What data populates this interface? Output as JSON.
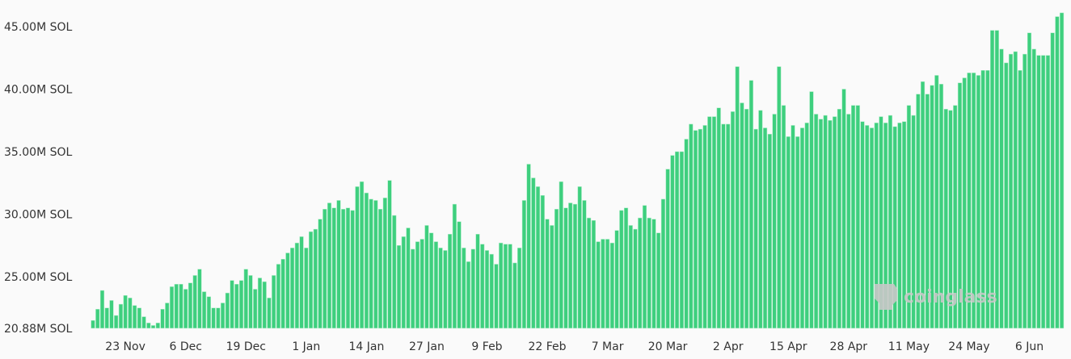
{
  "chart_data": {
    "type": "bar",
    "title": "",
    "xlabel": "",
    "ylabel": "",
    "unit": "M SOL",
    "bar_color": "#3ecf7e",
    "background": "#fafafa",
    "grid": false,
    "legend": "none",
    "ylim": [
      20.88,
      46.5
    ],
    "y_ticks": [
      {
        "value": 20.88,
        "label": "20.88M SOL"
      },
      {
        "value": 25,
        "label": "25.00M SOL"
      },
      {
        "value": 30,
        "label": "30.00M SOL"
      },
      {
        "value": 35,
        "label": "35.00M SOL"
      },
      {
        "value": 40,
        "label": "40.00M SOL"
      },
      {
        "value": 45,
        "label": "45.00M SOL"
      }
    ],
    "x_ticks": [
      "23 Nov",
      "6 Dec",
      "19 Dec",
      "1 Jan",
      "14 Jan",
      "27 Jan",
      "9 Feb",
      "22 Feb",
      "7 Mar",
      "20 Mar",
      "2 Apr",
      "15 Apr",
      "28 Apr",
      "11 May",
      "24 May",
      "6 Jun"
    ],
    "values": [
      21.5,
      22.4,
      23.9,
      22.5,
      23.1,
      21.9,
      22.8,
      23.5,
      23.3,
      22.7,
      22.5,
      21.8,
      21.3,
      21.1,
      21.3,
      22.4,
      22.9,
      24.2,
      24.4,
      24.4,
      24.0,
      24.5,
      25.1,
      25.6,
      23.8,
      23.4,
      22.5,
      22.5,
      22.9,
      23.7,
      24.7,
      24.4,
      24.7,
      25.6,
      25.1,
      24.0,
      24.9,
      24.6,
      23.3,
      25.1,
      26.0,
      26.4,
      26.9,
      27.3,
      27.7,
      28.2,
      27.3,
      28.6,
      28.8,
      29.6,
      30.4,
      30.9,
      30.5,
      31.1,
      30.4,
      30.5,
      30.3,
      32.2,
      32.6,
      31.7,
      31.2,
      31.1,
      30.4,
      31.3,
      32.7,
      29.9,
      27.5,
      28.2,
      28.9,
      27.2,
      27.8,
      28.0,
      29.1,
      28.5,
      27.8,
      27.3,
      27.1,
      28.4,
      30.8,
      29.4,
      27.3,
      26.2,
      27.2,
      28.4,
      27.6,
      27.1,
      26.8,
      26.0,
      27.7,
      27.6,
      27.6,
      26.1,
      27.3,
      31.1,
      34.0,
      32.9,
      32.2,
      31.5,
      29.6,
      29.1,
      30.4,
      32.6,
      30.5,
      30.9,
      30.8,
      32.2,
      31.1,
      29.7,
      29.5,
      27.8,
      28.0,
      28.0,
      27.7,
      28.7,
      30.3,
      30.5,
      29.1,
      28.8,
      29.7,
      30.7,
      29.7,
      29.6,
      28.5,
      31.2,
      33.6,
      34.7,
      35.0,
      35.0,
      36.0,
      37.2,
      36.7,
      36.8,
      37.1,
      37.8,
      37.8,
      38.5,
      37.2,
      37.2,
      38.2,
      41.8,
      38.9,
      38.4,
      40.7,
      36.8,
      38.3,
      36.9,
      36.4,
      38.0,
      41.8,
      38.7,
      36.2,
      37.1,
      36.2,
      36.9,
      37.3,
      39.8,
      38.0,
      37.6,
      37.9,
      37.5,
      37.8,
      38.4,
      40.0,
      38.0,
      38.7,
      38.7,
      37.4,
      37.1,
      36.9,
      37.3,
      37.8,
      37.3,
      37.9,
      37.0,
      37.3,
      37.4,
      38.7,
      37.9,
      39.6,
      40.6,
      39.6,
      40.3,
      41.1,
      40.4,
      38.4,
      38.3,
      38.7,
      40.5,
      40.9,
      41.3,
      41.3,
      41.1,
      41.5,
      41.5,
      44.7,
      44.7,
      43.2,
      42.1,
      42.8,
      43.0,
      41.5,
      42.8,
      44.5,
      43.2,
      42.7,
      42.7,
      42.7,
      44.5,
      45.8,
      46.1
    ]
  },
  "watermark": "coinglass"
}
